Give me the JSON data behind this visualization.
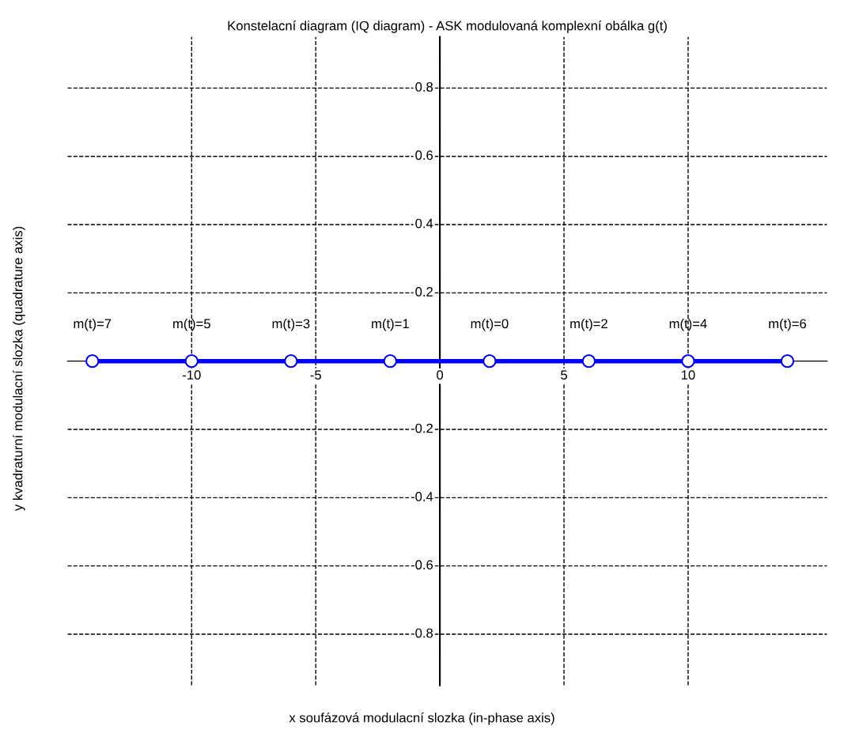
{
  "chart_data": {
    "type": "line",
    "title": "Konstelacní diagram (IQ diagram) - ASK modulovaná komplexní obálka g(t)",
    "xlabel": "x soufázová modulacní slozka (in-phase axis)",
    "ylabel": "y kvadraturní modulacní slozka (quadrature axis)",
    "x": [
      -14,
      -10,
      -6,
      -2,
      2,
      6,
      10,
      14
    ],
    "series": [
      {
        "color": "#0000ff",
        "values": [
          0,
          0,
          0,
          0,
          0,
          0,
          0,
          0
        ]
      }
    ],
    "marker": "circle",
    "line_style": "solid",
    "annotations": [
      {
        "text": "m(t)=7",
        "x": -14,
        "y": 0
      },
      {
        "text": "m(t)=5",
        "x": -10,
        "y": 0
      },
      {
        "text": "m(t)=3",
        "x": -6,
        "y": 0
      },
      {
        "text": "m(t)=1",
        "x": -2,
        "y": 0
      },
      {
        "text": "m(t)=0",
        "x": 2,
        "y": 0
      },
      {
        "text": "m(t)=2",
        "x": 6,
        "y": 0
      },
      {
        "text": "m(t)=4",
        "x": 10,
        "y": 0
      },
      {
        "text": "m(t)=6",
        "x": 14,
        "y": 0
      }
    ],
    "xlim": [
      -15,
      15.6
    ],
    "ylim": [
      -0.95,
      0.95
    ],
    "xticks": [
      -10,
      -5,
      0,
      5,
      10
    ],
    "yticks": [
      -0.8,
      -0.6,
      -0.4,
      -0.2,
      0.2,
      0.4,
      0.6,
      0.8
    ],
    "grid": true
  }
}
